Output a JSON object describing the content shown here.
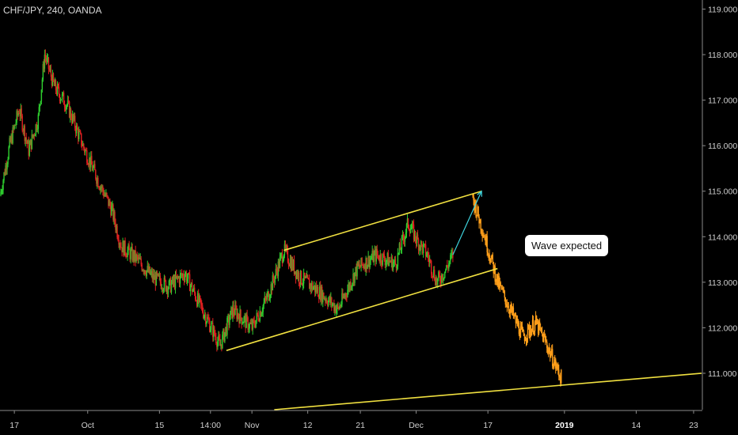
{
  "header": {
    "title": "CHF/JPY, 240, OANDA"
  },
  "annotation": {
    "text": "Wave expected"
  },
  "colors": {
    "up": "#2ecc2e",
    "down": "#e02020",
    "projection": "#ff9f1a",
    "channel": "#f0e040",
    "arrow": "#3fd6e0",
    "axis": "#8a8a8a"
  },
  "chart_data": {
    "type": "candlestick",
    "title": "CHF/JPY, 240, OANDA",
    "symbol": "CHF/JPY",
    "timeframe": "240",
    "broker": "OANDA",
    "y_range": [
      110.2,
      119.2
    ],
    "y_ticks": [
      "111.000",
      "112.000",
      "113.000",
      "114.000",
      "115.000",
      "116.000",
      "117.000",
      "118.000",
      "119.000"
    ],
    "x_ticks": [
      {
        "label": "17",
        "bold": false
      },
      {
        "label": "Oct",
        "bold": false
      },
      {
        "label": "15",
        "bold": false
      },
      {
        "label": "14:00",
        "bold": false
      },
      {
        "label": "Nov",
        "bold": false
      },
      {
        "label": "12",
        "bold": false
      },
      {
        "label": "21",
        "bold": false
      },
      {
        "label": "Dec",
        "bold": false
      },
      {
        "label": "17",
        "bold": false
      },
      {
        "label": "2019",
        "bold": true
      },
      {
        "label": "14",
        "bold": false
      },
      {
        "label": "23",
        "bold": false
      }
    ],
    "price_path": [
      [
        0,
        114.9
      ],
      [
        3,
        116.0
      ],
      [
        6,
        116.8
      ],
      [
        9,
        115.9
      ],
      [
        12,
        116.6
      ],
      [
        14,
        118.0
      ],
      [
        17,
        117.3
      ],
      [
        21,
        116.9
      ],
      [
        26,
        116.0
      ],
      [
        31,
        115.2
      ],
      [
        35,
        114.6
      ],
      [
        38,
        113.8
      ],
      [
        43,
        113.5
      ],
      [
        48,
        113.1
      ],
      [
        53,
        112.9
      ],
      [
        58,
        113.2
      ],
      [
        62,
        112.6
      ],
      [
        67,
        111.9
      ],
      [
        69,
        111.6
      ],
      [
        73,
        112.4
      ],
      [
        79,
        112.0
      ],
      [
        84,
        112.7
      ],
      [
        89,
        113.7
      ],
      [
        94,
        113.1
      ],
      [
        100,
        112.8
      ],
      [
        106,
        112.4
      ],
      [
        112,
        113.3
      ],
      [
        118,
        113.6
      ],
      [
        124,
        113.4
      ],
      [
        128,
        114.3
      ],
      [
        131,
        113.9
      ],
      [
        134,
        113.6
      ],
      [
        137,
        113.0
      ],
      [
        140,
        113.3
      ],
      [
        142,
        113.6
      ]
    ],
    "projection_path": [
      [
        148,
        114.9
      ],
      [
        152,
        114.0
      ],
      [
        156,
        113.0
      ],
      [
        160,
        112.4
      ],
      [
        164,
        111.8
      ],
      [
        168,
        112.1
      ],
      [
        171,
        111.7
      ],
      [
        174,
        111.2
      ],
      [
        176,
        110.9
      ]
    ],
    "channel_upper": [
      [
        89,
        113.7
      ],
      [
        151,
        115.0
      ]
    ],
    "channel_lower": [
      [
        71,
        111.5
      ],
      [
        156,
        113.3
      ]
    ],
    "arrow": [
      [
        142,
        113.6
      ],
      [
        151,
        115.0
      ]
    ],
    "support_line": [
      [
        86,
        110.2
      ],
      [
        220,
        111.0
      ]
    ]
  }
}
